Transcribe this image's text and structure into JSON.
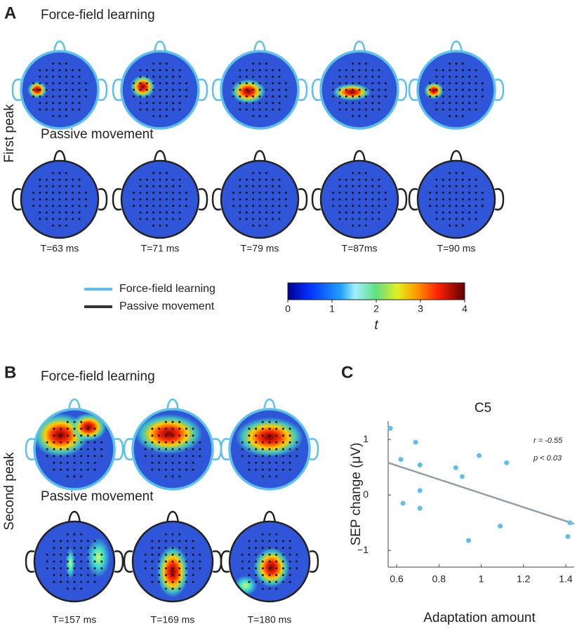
{
  "panel_a": {
    "label": "A",
    "side_label": "First peak",
    "conditions": [
      "Force-field learning",
      "Passive movement"
    ],
    "times": [
      "T=63 ms",
      "T=71 ms",
      "T=79 ms",
      "T=87ms",
      "T=90 ms"
    ]
  },
  "legend": [
    "Force-field learning",
    "Passive movement"
  ],
  "colorbar": {
    "label": "t",
    "lim": [
      0,
      4
    ],
    "ticks": [
      0,
      1,
      2,
      3,
      4
    ]
  },
  "panel_b": {
    "label": "B",
    "side_label": "Second peak",
    "conditions": [
      "Force-field learning",
      "Passive movement"
    ],
    "times": [
      "T=157 ms",
      "T=169 ms",
      "T=180 ms"
    ]
  },
  "panel_c": {
    "label": "C"
  },
  "chart_data": {
    "type": "scatter",
    "title": "C5",
    "x_label": "Adaptation amount",
    "y_label": "SEP change (μV)",
    "annotations": [
      "r = -0.55",
      "p < 0.03"
    ],
    "color": "#5bc0eb",
    "fit_color": "#8fa0a8",
    "x": [
      0.57,
      0.62,
      0.63,
      0.69,
      0.71,
      0.71,
      0.71,
      0.88,
      0.91,
      0.99,
      1.12,
      1.09,
      0.94,
      1.42,
      1.41
    ],
    "values": [
      1.2,
      0.64,
      -0.15,
      0.95,
      0.54,
      0.08,
      -0.24,
      0.49,
      0.33,
      0.71,
      0.58,
      -0.56,
      -0.82,
      -0.5,
      -0.75
    ],
    "fit": {
      "x": [
        0.56,
        1.44
      ],
      "y": [
        0.58,
        -0.52
      ]
    },
    "xlim": [
      0.56,
      1.44
    ],
    "ylim": [
      -1.3,
      1.33
    ],
    "xticks": [
      0.6,
      0.8,
      1,
      1.2,
      1.4
    ],
    "yticks": [
      {
        "value": -1,
        "label": "−1"
      },
      0,
      1
    ]
  }
}
